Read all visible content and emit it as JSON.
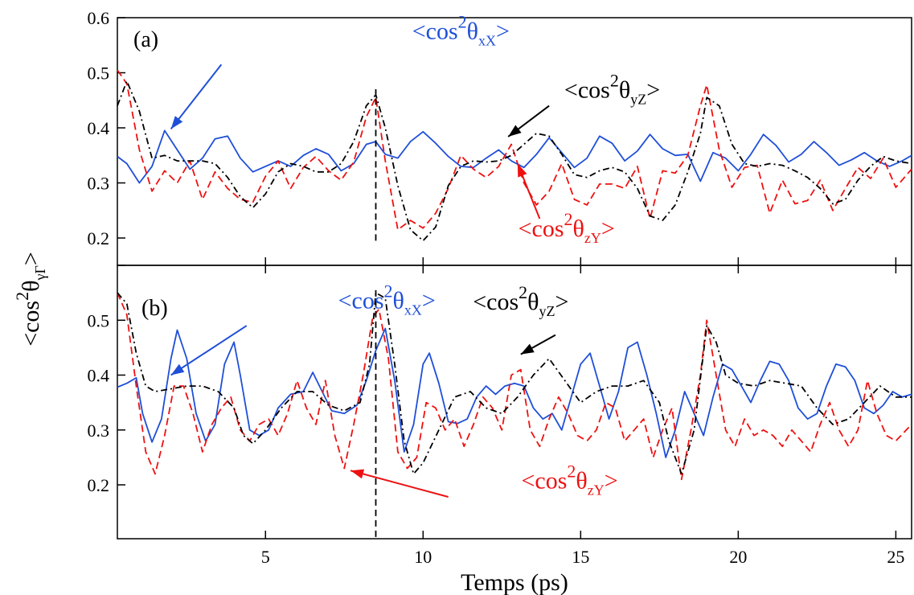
{
  "figure": {
    "xlabel": "Temps (ps)",
    "ylabel": {
      "main": "<cos",
      "sup": "2",
      "theta": "θ",
      "sub": "γΓ",
      "close": ">"
    }
  },
  "colors": {
    "blue": "#1f4fd8",
    "red": "#ee1111",
    "black": "#000000"
  },
  "chart_data": [
    {
      "type": "line",
      "panel_label": "(a)",
      "xlim": [
        0.3,
        25.5
      ],
      "ylim": [
        0.15,
        0.6
      ],
      "yticks": [
        0.2,
        0.3,
        0.4,
        0.5,
        0.6
      ],
      "ytick_labels": [
        "0.2",
        "0.3",
        "0.4",
        "0.5",
        "0.6"
      ],
      "marker_line": {
        "x": 8.5,
        "y_from": 0.195,
        "y_to": 0.47
      },
      "series": [
        {
          "key": "xX",
          "color": "#1f4fd8",
          "dash": "solid",
          "x": [
            0.3,
            0.6,
            1.0,
            1.4,
            1.8,
            2.2,
            2.6,
            3.0,
            3.4,
            3.8,
            4.2,
            4.6,
            5.0,
            5.4,
            5.8,
            6.2,
            6.6,
            7.0,
            7.4,
            7.8,
            8.2,
            8.5,
            8.8,
            9.2,
            9.6,
            10.0,
            10.4,
            10.8,
            11.2,
            11.6,
            12.0,
            12.4,
            12.8,
            13.2,
            13.6,
            14.0,
            14.4,
            14.8,
            15.2,
            15.6,
            16.0,
            16.4,
            16.8,
            17.2,
            17.6,
            18.0,
            18.4,
            18.8,
            19.2,
            19.6,
            20.0,
            20.4,
            20.8,
            21.2,
            21.6,
            22.0,
            22.4,
            22.8,
            23.2,
            23.6,
            24.0,
            24.4,
            24.8,
            25.2,
            25.5
          ],
          "y": [
            0.348,
            0.335,
            0.3,
            0.33,
            0.395,
            0.36,
            0.325,
            0.345,
            0.38,
            0.385,
            0.345,
            0.32,
            0.33,
            0.34,
            0.33,
            0.35,
            0.362,
            0.352,
            0.322,
            0.335,
            0.37,
            0.375,
            0.352,
            0.345,
            0.375,
            0.393,
            0.372,
            0.348,
            0.33,
            0.328,
            0.345,
            0.36,
            0.34,
            0.328,
            0.352,
            0.382,
            0.355,
            0.328,
            0.345,
            0.385,
            0.372,
            0.34,
            0.358,
            0.388,
            0.362,
            0.35,
            0.352,
            0.303,
            0.355,
            0.345,
            0.322,
            0.352,
            0.388,
            0.368,
            0.338,
            0.352,
            0.375,
            0.355,
            0.332,
            0.342,
            0.355,
            0.34,
            0.33,
            0.34,
            0.35
          ]
        },
        {
          "key": "zY",
          "color": "#ee1111",
          "dash": "dashed",
          "x": [
            0.3,
            0.6,
            1.0,
            1.4,
            1.8,
            2.2,
            2.6,
            3.0,
            3.4,
            3.8,
            4.2,
            4.6,
            5.0,
            5.4,
            5.8,
            6.2,
            6.6,
            7.0,
            7.4,
            7.8,
            8.2,
            8.5,
            8.8,
            9.2,
            9.6,
            10.0,
            10.4,
            10.8,
            11.2,
            11.6,
            12.0,
            12.4,
            12.8,
            13.2,
            13.6,
            14.0,
            14.4,
            14.8,
            15.2,
            15.6,
            16.0,
            16.4,
            16.8,
            17.2,
            17.6,
            18.0,
            18.4,
            18.8,
            19.0,
            19.4,
            19.8,
            20.2,
            20.6,
            21.0,
            21.4,
            21.8,
            22.2,
            22.6,
            23.0,
            23.4,
            23.8,
            24.2,
            24.6,
            25.0,
            25.5
          ],
          "y": [
            0.505,
            0.48,
            0.36,
            0.285,
            0.322,
            0.3,
            0.34,
            0.27,
            0.32,
            0.29,
            0.27,
            0.265,
            0.312,
            0.34,
            0.29,
            0.328,
            0.348,
            0.322,
            0.305,
            0.338,
            0.42,
            0.455,
            0.34,
            0.215,
            0.232,
            0.218,
            0.245,
            0.29,
            0.35,
            0.325,
            0.31,
            0.33,
            0.37,
            0.3,
            0.26,
            0.285,
            0.335,
            0.27,
            0.26,
            0.298,
            0.298,
            0.29,
            0.33,
            0.235,
            0.322,
            0.318,
            0.35,
            0.44,
            0.478,
            0.36,
            0.292,
            0.328,
            0.332,
            0.245,
            0.305,
            0.262,
            0.268,
            0.305,
            0.25,
            0.29,
            0.328,
            0.308,
            0.345,
            0.292,
            0.325
          ]
        },
        {
          "key": "yZ",
          "color": "#000000",
          "dash": "dashdot",
          "x": [
            0.3,
            0.6,
            1.0,
            1.4,
            1.8,
            2.2,
            2.6,
            3.0,
            3.4,
            3.8,
            4.2,
            4.6,
            5.0,
            5.4,
            5.8,
            6.2,
            6.6,
            7.0,
            7.4,
            7.8,
            8.2,
            8.5,
            8.8,
            9.2,
            9.6,
            10.0,
            10.4,
            10.8,
            11.2,
            11.6,
            12.0,
            12.4,
            12.8,
            13.2,
            13.6,
            14.0,
            14.4,
            14.8,
            15.2,
            15.6,
            16.0,
            16.4,
            16.8,
            17.2,
            17.6,
            18.0,
            18.4,
            18.8,
            19.0,
            19.4,
            19.8,
            20.2,
            20.6,
            21.0,
            21.4,
            21.8,
            22.2,
            22.6,
            23.0,
            23.4,
            23.8,
            24.2,
            24.6,
            25.0,
            25.5
          ],
          "y": [
            0.44,
            0.485,
            0.43,
            0.345,
            0.35,
            0.34,
            0.34,
            0.34,
            0.335,
            0.31,
            0.275,
            0.255,
            0.28,
            0.32,
            0.335,
            0.33,
            0.32,
            0.32,
            0.335,
            0.375,
            0.44,
            0.46,
            0.4,
            0.295,
            0.215,
            0.195,
            0.22,
            0.295,
            0.33,
            0.34,
            0.338,
            0.34,
            0.35,
            0.37,
            0.39,
            0.385,
            0.352,
            0.315,
            0.31,
            0.322,
            0.328,
            0.32,
            0.29,
            0.24,
            0.232,
            0.26,
            0.32,
            0.39,
            0.455,
            0.44,
            0.37,
            0.335,
            0.33,
            0.335,
            0.332,
            0.322,
            0.31,
            0.29,
            0.262,
            0.27,
            0.305,
            0.33,
            0.348,
            0.34,
            0.335
          ]
        }
      ],
      "annotations": [
        {
          "series": "xX",
          "x": 11.2,
          "y": 0.5615,
          "color": "#1f4fd8"
        },
        {
          "series": "yZ",
          "x": 16.0,
          "y": 0.4545,
          "color": "#000000"
        },
        {
          "series": "zY",
          "x": 14.55,
          "y": 0.203,
          "color": "#ee1111"
        }
      ],
      "arrows": [
        {
          "from": [
            3.6,
            0.515
          ],
          "to": [
            2.0,
            0.398
          ],
          "color": "#1f4fd8"
        },
        {
          "from": [
            14.0,
            0.44
          ],
          "to": [
            12.7,
            0.384
          ],
          "color": "#000000"
        },
        {
          "from": [
            13.7,
            0.235
          ],
          "to": [
            13.0,
            0.335
          ],
          "color": "#ee1111"
        }
      ]
    },
    {
      "type": "line",
      "panel_label": "(b)",
      "xlim": [
        0.3,
        25.5
      ],
      "ylim": [
        0.15,
        0.6
      ],
      "yticks": [
        0.2,
        0.3,
        0.4,
        0.5,
        0.6
      ],
      "ytick_labels": [
        "0.2",
        "0.3",
        "0.4",
        "0.5",
        ""
      ],
      "xticks": [
        5,
        10,
        15,
        20,
        25
      ],
      "xtick_labels": [
        "5",
        "10",
        "15",
        "20",
        "25"
      ],
      "marker_line": {
        "x": 8.5,
        "y_from": 0.105,
        "y_to": 0.555
      },
      "series": [
        {
          "key": "xX",
          "color": "#1f4fd8",
          "dash": "solid",
          "x": [
            0.3,
            0.6,
            0.9,
            1.1,
            1.4,
            1.7,
            2.0,
            2.2,
            2.5,
            2.8,
            3.1,
            3.4,
            3.7,
            4.0,
            4.2,
            4.5,
            4.8,
            5.1,
            5.4,
            5.8,
            6.2,
            6.5,
            6.8,
            7.1,
            7.5,
            7.9,
            8.2,
            8.5,
            8.8,
            9.1,
            9.4,
            9.7,
            10.0,
            10.2,
            10.5,
            10.8,
            11.1,
            11.4,
            11.7,
            12.0,
            12.3,
            12.6,
            12.9,
            13.2,
            13.5,
            13.8,
            14.1,
            14.4,
            14.7,
            15.0,
            15.3,
            15.6,
            15.9,
            16.2,
            16.5,
            16.8,
            17.1,
            17.4,
            17.7,
            18.0,
            18.3,
            18.6,
            18.9,
            19.2,
            19.5,
            19.8,
            20.1,
            20.4,
            20.7,
            21.0,
            21.3,
            21.6,
            21.9,
            22.2,
            22.5,
            22.8,
            23.1,
            23.4,
            23.7,
            24.0,
            24.3,
            24.6,
            24.9,
            25.2,
            25.5
          ],
          "y": [
            0.378,
            0.385,
            0.395,
            0.33,
            0.278,
            0.32,
            0.43,
            0.482,
            0.43,
            0.33,
            0.28,
            0.31,
            0.42,
            0.46,
            0.4,
            0.3,
            0.29,
            0.3,
            0.34,
            0.365,
            0.37,
            0.405,
            0.37,
            0.335,
            0.33,
            0.345,
            0.39,
            0.445,
            0.485,
            0.39,
            0.26,
            0.31,
            0.42,
            0.44,
            0.385,
            0.315,
            0.312,
            0.32,
            0.36,
            0.38,
            0.365,
            0.38,
            0.385,
            0.38,
            0.34,
            0.32,
            0.33,
            0.3,
            0.36,
            0.42,
            0.44,
            0.38,
            0.32,
            0.37,
            0.45,
            0.46,
            0.4,
            0.33,
            0.25,
            0.3,
            0.37,
            0.33,
            0.29,
            0.36,
            0.42,
            0.41,
            0.38,
            0.35,
            0.39,
            0.425,
            0.42,
            0.39,
            0.34,
            0.32,
            0.33,
            0.38,
            0.42,
            0.415,
            0.39,
            0.34,
            0.33,
            0.345,
            0.37,
            0.36,
            0.365
          ]
        },
        {
          "key": "zY",
          "color": "#ee1111",
          "dash": "dashed",
          "x": [
            0.3,
            0.6,
            0.9,
            1.2,
            1.5,
            1.8,
            2.1,
            2.4,
            2.7,
            3.0,
            3.3,
            3.6,
            3.9,
            4.2,
            4.5,
            4.8,
            5.1,
            5.4,
            5.7,
            6.0,
            6.3,
            6.6,
            6.9,
            7.2,
            7.5,
            7.8,
            8.1,
            8.4,
            8.6,
            8.9,
            9.2,
            9.5,
            9.8,
            10.1,
            10.4,
            10.7,
            11.0,
            11.3,
            11.6,
            11.9,
            12.2,
            12.5,
            12.8,
            13.1,
            13.4,
            13.7,
            14.0,
            14.3,
            14.6,
            14.9,
            15.2,
            15.5,
            15.8,
            16.1,
            16.4,
            16.7,
            17.0,
            17.3,
            17.6,
            17.9,
            18.2,
            18.5,
            18.8,
            19.0,
            19.3,
            19.6,
            19.9,
            20.2,
            20.5,
            20.8,
            21.1,
            21.4,
            21.7,
            22.0,
            22.3,
            22.6,
            22.9,
            23.2,
            23.5,
            23.8,
            24.1,
            24.4,
            24.7,
            25.0,
            25.5
          ],
          "y": [
            0.55,
            0.51,
            0.38,
            0.26,
            0.22,
            0.29,
            0.38,
            0.38,
            0.33,
            0.26,
            0.31,
            0.34,
            0.36,
            0.3,
            0.28,
            0.31,
            0.32,
            0.29,
            0.33,
            0.39,
            0.34,
            0.31,
            0.39,
            0.29,
            0.23,
            0.31,
            0.4,
            0.505,
            0.52,
            0.43,
            0.26,
            0.23,
            0.25,
            0.35,
            0.34,
            0.3,
            0.32,
            0.27,
            0.31,
            0.36,
            0.34,
            0.3,
            0.4,
            0.41,
            0.3,
            0.27,
            0.32,
            0.36,
            0.33,
            0.29,
            0.28,
            0.3,
            0.35,
            0.34,
            0.28,
            0.3,
            0.32,
            0.25,
            0.3,
            0.34,
            0.21,
            0.3,
            0.4,
            0.5,
            0.4,
            0.3,
            0.27,
            0.32,
            0.29,
            0.3,
            0.29,
            0.27,
            0.3,
            0.28,
            0.26,
            0.31,
            0.35,
            0.3,
            0.27,
            0.3,
            0.39,
            0.33,
            0.29,
            0.28,
            0.31
          ]
        },
        {
          "key": "yZ",
          "color": "#000000",
          "dash": "dashdot",
          "x": [
            0.3,
            0.6,
            0.9,
            1.2,
            1.5,
            2.0,
            2.5,
            3.0,
            3.5,
            4.0,
            4.3,
            4.6,
            5.0,
            5.5,
            6.0,
            6.5,
            7.0,
            7.5,
            8.0,
            8.3,
            8.5,
            8.8,
            9.1,
            9.4,
            9.7,
            10.0,
            10.5,
            11.0,
            11.5,
            12.0,
            12.5,
            13.0,
            13.5,
            14.0,
            14.5,
            15.0,
            15.5,
            16.0,
            16.5,
            17.0,
            17.5,
            17.8,
            18.2,
            18.6,
            19.0,
            19.3,
            19.6,
            20.0,
            20.5,
            21.0,
            21.5,
            22.0,
            22.5,
            23.0,
            23.5,
            24.0,
            24.5,
            25.0,
            25.5
          ],
          "y": [
            0.55,
            0.53,
            0.44,
            0.38,
            0.37,
            0.375,
            0.38,
            0.38,
            0.37,
            0.34,
            0.29,
            0.275,
            0.3,
            0.34,
            0.37,
            0.37,
            0.345,
            0.335,
            0.35,
            0.42,
            0.55,
            0.54,
            0.42,
            0.28,
            0.22,
            0.24,
            0.3,
            0.36,
            0.37,
            0.34,
            0.33,
            0.36,
            0.4,
            0.43,
            0.39,
            0.35,
            0.37,
            0.38,
            0.38,
            0.39,
            0.35,
            0.28,
            0.22,
            0.3,
            0.49,
            0.46,
            0.4,
            0.385,
            0.38,
            0.39,
            0.385,
            0.38,
            0.34,
            0.31,
            0.32,
            0.35,
            0.38,
            0.36,
            0.36
          ]
        }
      ],
      "annotations": [
        {
          "series": "xX",
          "x": 8.85,
          "y": 0.5215,
          "color": "#1f4fd8"
        },
        {
          "series": "yZ",
          "x": 13.1,
          "y": 0.5195,
          "color": "#000000"
        },
        {
          "series": "zY",
          "x": 14.65,
          "y": 0.1935,
          "color": "#ee1111"
        }
      ],
      "arrows": [
        {
          "from": [
            4.4,
            0.49
          ],
          "to": [
            2.0,
            0.4
          ],
          "color": "#1f4fd8"
        },
        {
          "from": [
            14.2,
            0.473
          ],
          "to": [
            13.1,
            0.438
          ],
          "color": "#000000"
        },
        {
          "from": [
            10.8,
            0.178
          ],
          "to": [
            7.7,
            0.226
          ],
          "color": "#ee1111"
        }
      ]
    }
  ],
  "labels": {
    "xX": {
      "pre": "<cos",
      "sup": "2",
      "theta": "θ",
      "sub": "xX",
      "post": ">"
    },
    "yZ": {
      "pre": "<cos",
      "sup": "2",
      "theta": "θ",
      "sub": "yZ",
      "post": ">"
    },
    "zY": {
      "pre": "<cos",
      "sup": "2",
      "theta": "θ",
      "sub": "zY",
      "post": ">"
    }
  }
}
